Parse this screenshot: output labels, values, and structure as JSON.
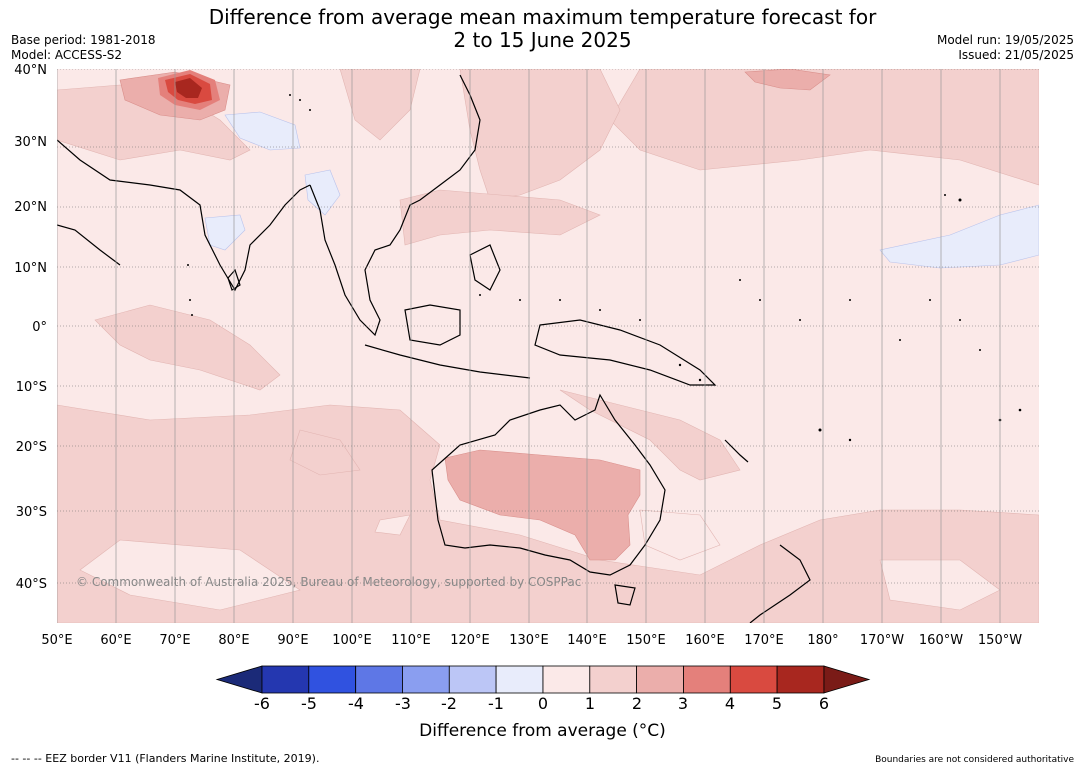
{
  "title": {
    "line1": "Difference from average mean maximum temperature forecast for",
    "line2": "2 to 15 June 2025"
  },
  "meta": {
    "base_period": "Base period: 1981-2018",
    "model": "Model: ACCESS-S2",
    "model_run": "Model run: 19/05/2025",
    "issued": "Issued: 21/05/2025"
  },
  "map": {
    "copyright": "© Commonwealth of Australia 2025, Bureau of Meteorology, supported by COSPPac",
    "lat_labels": [
      "40°N",
      "30°N",
      "20°N",
      "10°N",
      "0°",
      "10°S",
      "20°S",
      "30°S",
      "40°S"
    ],
    "lon_labels": [
      "50°E",
      "60°E",
      "70°E",
      "80°E",
      "90°E",
      "100°E",
      "110°E",
      "120°E",
      "130°E",
      "140°E",
      "150°E",
      "160°E",
      "170°E",
      "180°",
      "170°W",
      "160°W",
      "150°W"
    ]
  },
  "colorbar": {
    "title": "Difference from average (°C)",
    "tick_labels": [
      "-6",
      "-5",
      "-4",
      "-3",
      "-2",
      "-1",
      "0",
      "1",
      "2",
      "3",
      "4",
      "5",
      "6"
    ],
    "colors": [
      "#1b2a78",
      "#2437b0",
      "#3052e0",
      "#5e77e6",
      "#8a9ef0",
      "#bcc6f6",
      "#e8ecfb",
      "#fbe9e8",
      "#f3d0ce",
      "#ebaeab",
      "#e4807b",
      "#d94a40",
      "#a8271f",
      "#7a1b17"
    ]
  },
  "footer": {
    "eez_note": "--  --  -- EEZ border V11 (Flanders Marine Institute, 2019).",
    "disclaimer": "Boundaries are not considered authoritative"
  }
}
